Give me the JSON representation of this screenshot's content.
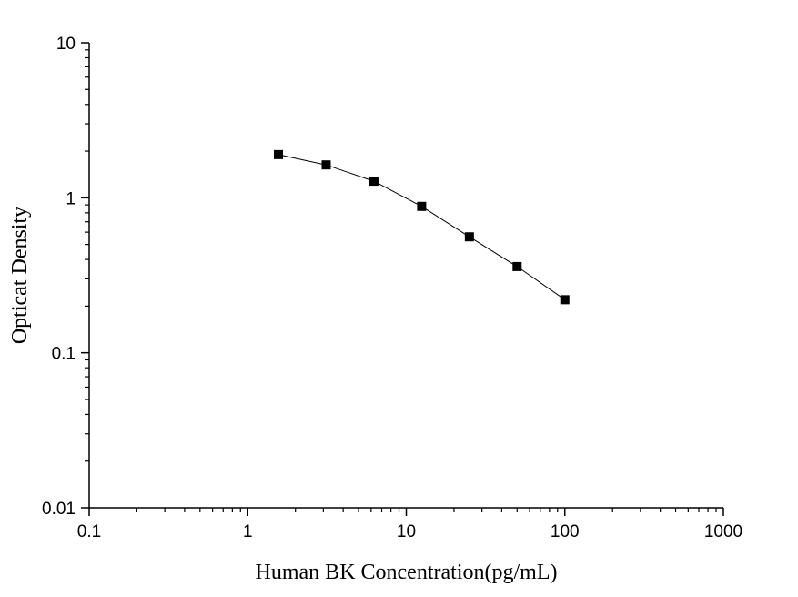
{
  "chart_data": {
    "type": "line",
    "xlabel": "Human BK  Concentration(pg/mL)",
    "ylabel": "Opticat Density",
    "x_scale": "log",
    "y_scale": "log",
    "xlim": [
      0.1,
      1000
    ],
    "ylim": [
      0.01,
      10
    ],
    "x_ticks": [
      "0.1",
      "1",
      "10",
      "100",
      "1000"
    ],
    "y_ticks": [
      "0.01",
      "0.1",
      "1",
      "10"
    ],
    "grid": false,
    "marker": "square",
    "series": [
      {
        "x": [
          1.5625,
          3.125,
          6.25,
          12.5,
          25,
          50,
          100
        ],
        "y": [
          1.9,
          1.63,
          1.28,
          0.88,
          0.56,
          0.36,
          0.22
        ],
        "color": "#000000"
      }
    ]
  }
}
